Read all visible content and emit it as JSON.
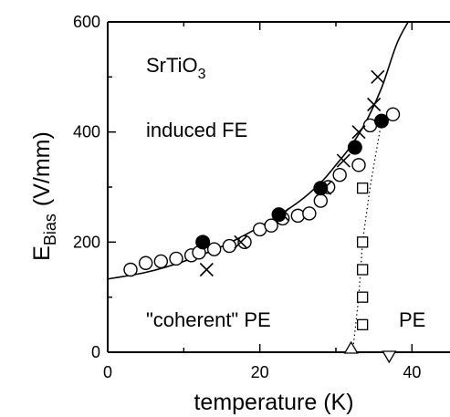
{
  "chart_data": {
    "type": "scatter",
    "title": "",
    "xlabel": "temperature (K)",
    "ylabel": {
      "main": "E",
      "sub": "Bias",
      "unit": "(V/mm)"
    },
    "xlim": [
      0,
      45
    ],
    "ylim": [
      0,
      600
    ],
    "x_ticks": [
      0,
      20,
      40
    ],
    "x_tick_labels": [
      "0",
      "20",
      "40"
    ],
    "x_minor_ticks": [
      10,
      30
    ],
    "y_ticks": [
      0,
      200,
      400,
      600
    ],
    "y_tick_labels": [
      "0",
      "200",
      "400",
      "600"
    ],
    "y_minor_ticks": [
      100,
      300,
      500
    ],
    "grid": false,
    "annotations": {
      "material": {
        "main": "SrTiO",
        "sub": "3"
      },
      "induced_fe": "induced FE",
      "coherent_pe": "\"coherent\" PE",
      "pe": "PE"
    },
    "series": [
      {
        "marker": "open-circle",
        "x": [
          3,
          5,
          7,
          9,
          11,
          12,
          14,
          16,
          18,
          20,
          21.5,
          23,
          25,
          26.5,
          28,
          29,
          30.5,
          33,
          34.5,
          36,
          37.5
        ],
        "y": [
          150,
          162,
          165,
          170,
          176,
          181,
          187,
          193,
          200,
          223,
          230,
          243,
          248,
          252,
          275,
          300,
          322,
          340,
          412,
          420,
          432
        ]
      },
      {
        "marker": "filled-circle",
        "x": [
          12.5,
          22.5,
          28,
          32.5,
          36
        ],
        "y": [
          200,
          250,
          298,
          372,
          420
        ]
      },
      {
        "marker": "cross",
        "x": [
          13,
          17.5,
          23,
          28.5,
          31,
          33,
          35,
          35.5
        ],
        "y": [
          150,
          200,
          250,
          298,
          348,
          400,
          450,
          500
        ]
      },
      {
        "marker": "open-square",
        "x": [
          33.5,
          33.5,
          33.5,
          33.5,
          33.5
        ],
        "y": [
          50,
          100,
          150,
          200,
          298
        ]
      },
      {
        "marker": "triangle-up",
        "x": [
          32
        ],
        "y": [
          0
        ]
      },
      {
        "marker": "triangle-down",
        "x": [
          37
        ],
        "y": [
          0
        ]
      }
    ],
    "fit_curve": {
      "style": "solid",
      "x": [
        0,
        5,
        10,
        15,
        20,
        25,
        28,
        30,
        32,
        34,
        36,
        38,
        39.5
      ],
      "y": [
        133,
        145,
        165,
        192,
        228,
        272,
        308,
        340,
        375,
        420,
        480,
        560,
        600
      ]
    },
    "phase_boundary": {
      "style": "dotted",
      "x": [
        32.2,
        33.0,
        33.5,
        34.5,
        36.0
      ],
      "y": [
        0,
        100,
        200,
        300,
        420
      ]
    }
  }
}
